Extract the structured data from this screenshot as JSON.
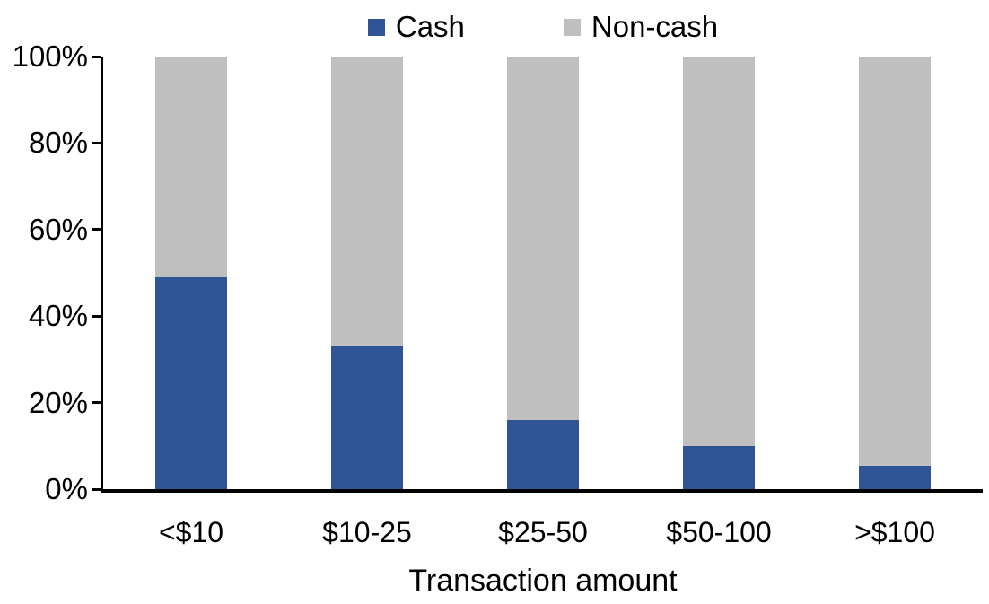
{
  "chart_data": {
    "type": "bar",
    "stacked": true,
    "title": "",
    "categories": [
      "<$10",
      "$10-25",
      "$25-50",
      "$50-100",
      ">$100"
    ],
    "series": [
      {
        "name": "Cash",
        "color": "#2F5597",
        "values": [
          49,
          33,
          16,
          10,
          5.5
        ]
      },
      {
        "name": "Non-cash",
        "color": "#BFBFBF",
        "values": [
          51,
          67,
          84,
          90,
          94.5
        ]
      }
    ],
    "xlabel": "Transaction amount",
    "ylabel": "",
    "ylim": [
      0,
      100
    ],
    "ytick_values": [
      0,
      20,
      40,
      60,
      80,
      100
    ],
    "ytick_labels": [
      "0%",
      "20%",
      "40%",
      "60%",
      "80%",
      "100%"
    ],
    "legend_position": "top",
    "grid": false,
    "axis_color": "#000000",
    "background_color": "#FFFFFF"
  }
}
